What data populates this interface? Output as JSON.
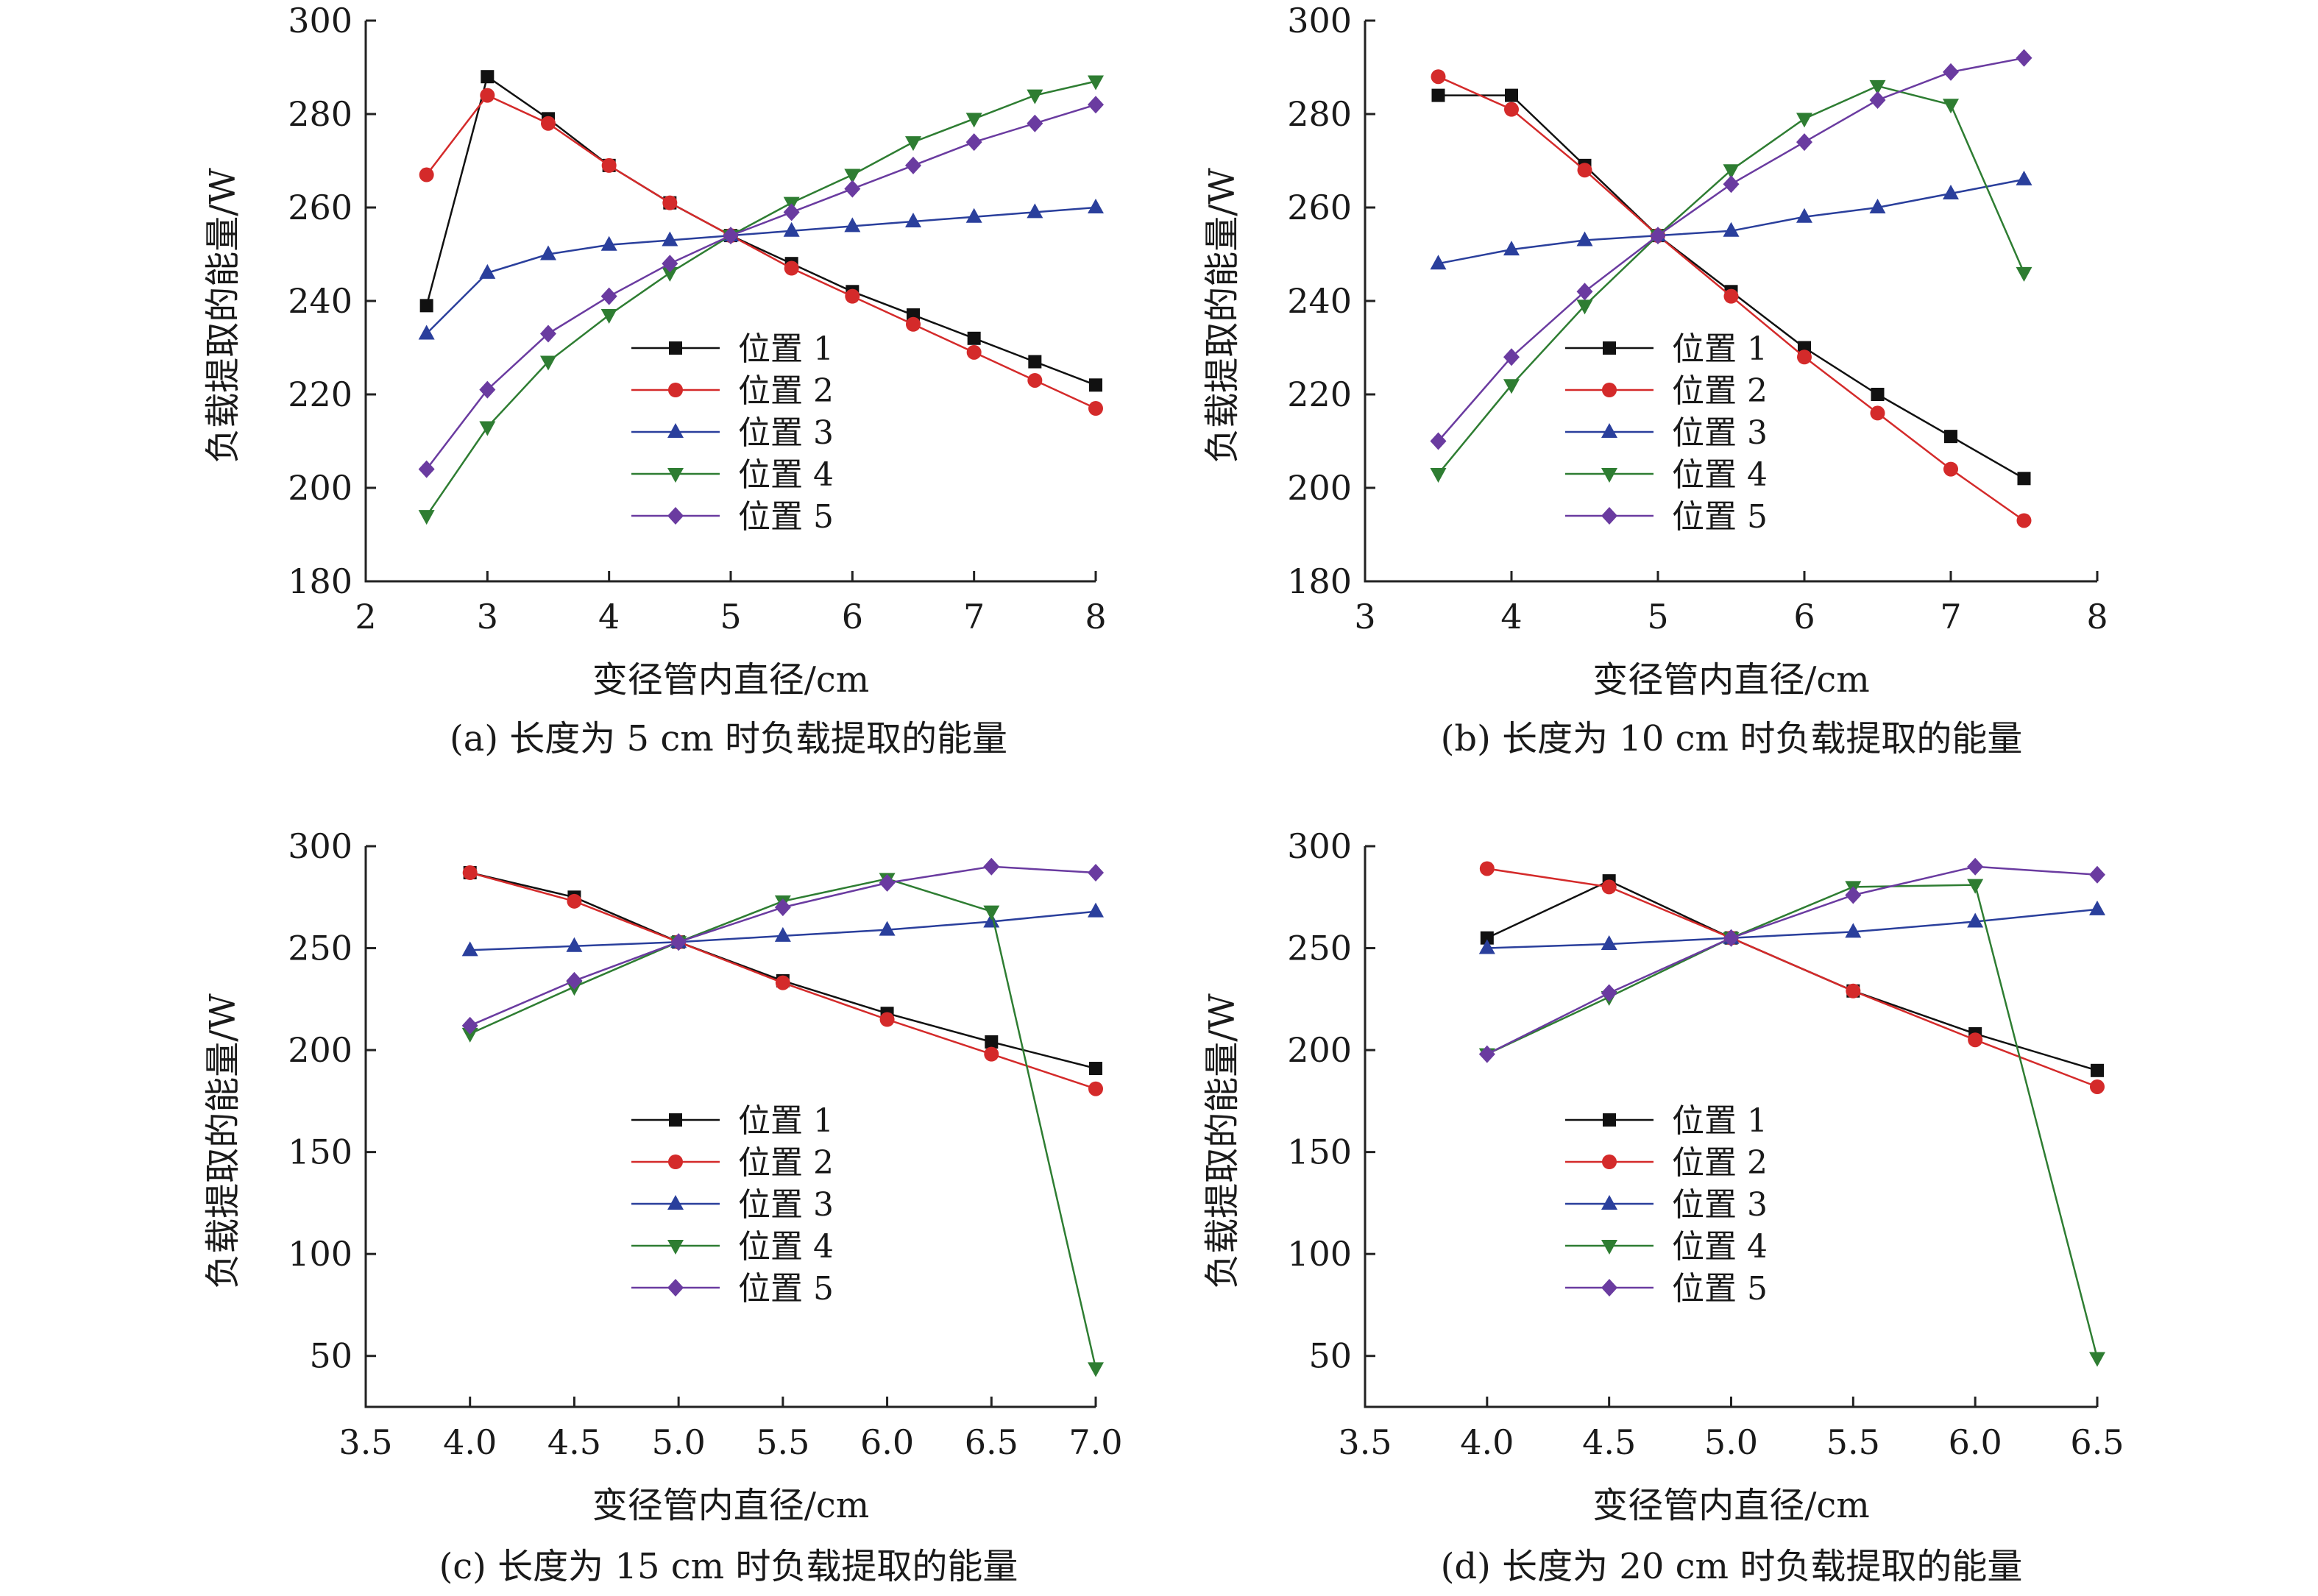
{
  "colors": {
    "位置 1": "#111111",
    "位置 2": "#d42a2a",
    "位置 3": "#2a3f9c",
    "位置 4": "#2e7d32",
    "位置 5": "#6a3ba0"
  },
  "markers": {
    "位置 1": "square",
    "位置 2": "circle",
    "位置 3": "triangle-up",
    "位置 4": "triangle-down",
    "位置 5": "diamond"
  },
  "chart_data": [
    {
      "type": "line",
      "caption": "(a) 长度为 5 cm 时负载提取的能量",
      "xlabel": "变径管内直径/cm",
      "ylabel": "负载提取的能量/W",
      "xlim": [
        2,
        8
      ],
      "ylim": [
        180,
        300
      ],
      "xticks": [
        "2",
        "3",
        "4",
        "5",
        "6",
        "7",
        "8"
      ],
      "xtick_values": [
        2,
        3,
        4,
        5,
        6,
        7,
        8
      ],
      "yticks": [
        "180",
        "200",
        "220",
        "240",
        "260",
        "280",
        "300"
      ],
      "ytick_values": [
        180,
        200,
        220,
        240,
        260,
        280,
        300
      ],
      "legend_position": "center-left",
      "series": [
        {
          "name": "位置 1",
          "x": [
            2.5,
            3,
            3.5,
            4,
            4.5,
            5,
            5.5,
            6,
            6.5,
            7,
            7.5,
            8
          ],
          "y": [
            239,
            288,
            279,
            269,
            261,
            254,
            248,
            242,
            237,
            232,
            227,
            222
          ]
        },
        {
          "name": "位置 2",
          "x": [
            2.5,
            3,
            3.5,
            4,
            4.5,
            5,
            5.5,
            6,
            6.5,
            7,
            7.5,
            8
          ],
          "y": [
            267,
            284,
            278,
            269,
            261,
            254,
            247,
            241,
            235,
            229,
            223,
            217
          ]
        },
        {
          "name": "位置 3",
          "x": [
            2.5,
            3,
            3.5,
            4,
            4.5,
            5,
            5.5,
            6,
            6.5,
            7,
            7.5,
            8
          ],
          "y": [
            233,
            246,
            250,
            252,
            253,
            254,
            255,
            256,
            257,
            258,
            259,
            260
          ]
        },
        {
          "name": "位置 4",
          "x": [
            2.5,
            3,
            3.5,
            4,
            4.5,
            5,
            5.5,
            6,
            6.5,
            7,
            7.5,
            8
          ],
          "y": [
            194,
            213,
            227,
            237,
            246,
            254,
            261,
            267,
            274,
            279,
            284,
            287
          ]
        },
        {
          "name": "位置 5",
          "x": [
            2.5,
            3,
            3.5,
            4,
            4.5,
            5,
            5.5,
            6,
            6.5,
            7,
            7.5,
            8
          ],
          "y": [
            204,
            221,
            233,
            241,
            248,
            254,
            259,
            264,
            269,
            274,
            278,
            282
          ]
        }
      ]
    },
    {
      "type": "line",
      "caption": "(b) 长度为 10 cm 时负载提取的能量",
      "xlabel": "变径管内直径/cm",
      "ylabel": "负载提取的能量/W",
      "xlim": [
        3,
        8
      ],
      "ylim": [
        180,
        300
      ],
      "xticks": [
        "3",
        "4",
        "5",
        "6",
        "7",
        "8"
      ],
      "xtick_values": [
        3,
        4,
        5,
        6,
        7,
        8
      ],
      "yticks": [
        "180",
        "200",
        "220",
        "240",
        "260",
        "280",
        "300"
      ],
      "ytick_values": [
        180,
        200,
        220,
        240,
        260,
        280,
        300
      ],
      "legend_position": "center-left",
      "series": [
        {
          "name": "位置 1",
          "x": [
            3.5,
            4,
            4.5,
            5,
            5.5,
            6,
            6.5,
            7,
            7.5
          ],
          "y": [
            284,
            284,
            269,
            254,
            242,
            230,
            220,
            211,
            202
          ]
        },
        {
          "name": "位置 2",
          "x": [
            3.5,
            4,
            4.5,
            5,
            5.5,
            6,
            6.5,
            7,
            7.5
          ],
          "y": [
            288,
            281,
            268,
            254,
            241,
            228,
            216,
            204,
            193
          ]
        },
        {
          "name": "位置 3",
          "x": [
            3.5,
            4,
            4.5,
            5,
            5.5,
            6,
            6.5,
            7,
            7.5
          ],
          "y": [
            248,
            251,
            253,
            254,
            255,
            258,
            260,
            263,
            266
          ]
        },
        {
          "name": "位置 4",
          "x": [
            3.5,
            4,
            4.5,
            5,
            5.5,
            6,
            6.5,
            7,
            7.5
          ],
          "y": [
            203,
            222,
            239,
            254,
            268,
            279,
            286,
            282,
            246
          ]
        },
        {
          "name": "位置 5",
          "x": [
            3.5,
            4,
            4.5,
            5,
            5.5,
            6,
            6.5,
            7,
            7.5
          ],
          "y": [
            210,
            228,
            242,
            254,
            265,
            274,
            283,
            289,
            292
          ]
        }
      ]
    },
    {
      "type": "line",
      "caption": "(c) 长度为 15 cm 时负载提取的能量",
      "xlabel": "变径管内直径/cm",
      "ylabel": "负载提取的能量/W",
      "xlim": [
        3.5,
        7.0
      ],
      "ylim": [
        25,
        300
      ],
      "xticks": [
        "3.5",
        "4.0",
        "4.5",
        "5.0",
        "5.5",
        "6.0",
        "6.5",
        "7.0"
      ],
      "xtick_values": [
        3.5,
        4.0,
        4.5,
        5.0,
        5.5,
        6.0,
        6.5,
        7.0
      ],
      "yticks": [
        "50",
        "100",
        "150",
        "200",
        "250",
        "300"
      ],
      "ytick_values": [
        50,
        100,
        150,
        200,
        250,
        300
      ],
      "legend_position": "center",
      "series": [
        {
          "name": "位置 1",
          "x": [
            4.0,
            4.5,
            5.0,
            5.5,
            6.0,
            6.5,
            7.0
          ],
          "y": [
            287,
            275,
            253,
            234,
            218,
            204,
            191
          ]
        },
        {
          "name": "位置 2",
          "x": [
            4.0,
            4.5,
            5.0,
            5.5,
            6.0,
            6.5,
            7.0
          ],
          "y": [
            287,
            273,
            253,
            233,
            215,
            198,
            181
          ]
        },
        {
          "name": "位置 3",
          "x": [
            4.0,
            4.5,
            5.0,
            5.5,
            6.0,
            6.5,
            7.0
          ],
          "y": [
            249,
            251,
            253,
            256,
            259,
            263,
            268
          ]
        },
        {
          "name": "位置 4",
          "x": [
            4.0,
            4.5,
            5.0,
            5.5,
            6.0,
            6.5,
            7.0
          ],
          "y": [
            208,
            231,
            253,
            273,
            284,
            268,
            44
          ]
        },
        {
          "name": "位置 5",
          "x": [
            4.0,
            4.5,
            5.0,
            5.5,
            6.0,
            6.5,
            7.0
          ],
          "y": [
            212,
            234,
            253,
            270,
            282,
            290,
            287
          ]
        }
      ]
    },
    {
      "type": "line",
      "caption": "(d) 长度为 20 cm 时负载提取的能量",
      "xlabel": "变径管内直径/cm",
      "ylabel": "负载提取的能量/W",
      "xlim": [
        3.5,
        6.5
      ],
      "ylim": [
        25,
        300
      ],
      "xticks": [
        "3.5",
        "4.0",
        "4.5",
        "5.0",
        "5.5",
        "6.0",
        "6.5"
      ],
      "xtick_values": [
        3.5,
        4.0,
        4.5,
        5.0,
        5.5,
        6.0,
        6.5
      ],
      "yticks": [
        "50",
        "100",
        "150",
        "200",
        "250",
        "300"
      ],
      "ytick_values": [
        50,
        100,
        150,
        200,
        250,
        300
      ],
      "legend_position": "center-left",
      "series": [
        {
          "name": "位置 1",
          "x": [
            4.0,
            4.5,
            5.0,
            5.5,
            6.0,
            6.5
          ],
          "y": [
            255,
            283,
            255,
            229,
            208,
            190
          ]
        },
        {
          "name": "位置 2",
          "x": [
            4.0,
            4.5,
            5.0,
            5.5,
            6.0,
            6.5
          ],
          "y": [
            289,
            280,
            255,
            229,
            205,
            182
          ]
        },
        {
          "name": "位置 3",
          "x": [
            4.0,
            4.5,
            5.0,
            5.5,
            6.0,
            6.5
          ],
          "y": [
            250,
            252,
            255,
            258,
            263,
            269
          ]
        },
        {
          "name": "位置 4",
          "x": [
            4.0,
            4.5,
            5.0,
            5.5,
            6.0,
            6.5
          ],
          "y": [
            198,
            226,
            255,
            280,
            281,
            49
          ]
        },
        {
          "name": "位置 5",
          "x": [
            4.0,
            4.5,
            5.0,
            5.5,
            6.0,
            6.5
          ],
          "y": [
            198,
            228,
            255,
            276,
            290,
            286
          ]
        }
      ]
    }
  ]
}
